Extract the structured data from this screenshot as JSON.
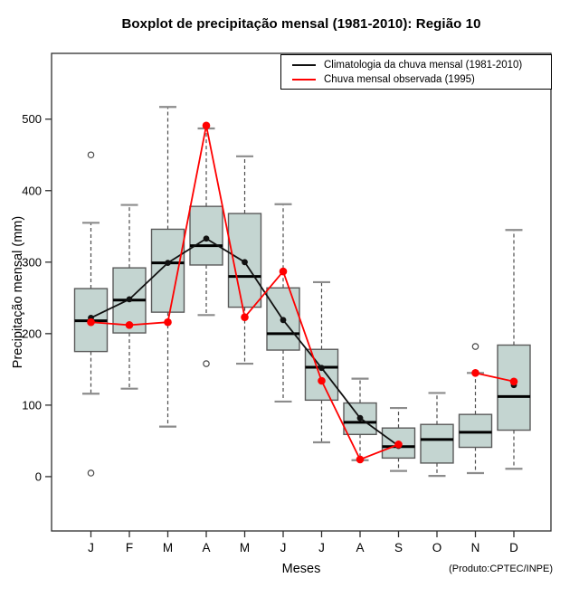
{
  "chart_data": {
    "type": "boxplot",
    "title": "Boxplot de precipitação mensal (1981-2010): Região 10",
    "xlabel": "Meses",
    "ylabel": "Precipitação mensal (mm)",
    "footnote": "(Produto:CPTEC/INPE)",
    "categories": [
      "J",
      "F",
      "M",
      "A",
      "M",
      "J",
      "J",
      "A",
      "S",
      "O",
      "N",
      "D"
    ],
    "y_ticks": [
      0,
      100,
      200,
      300,
      400,
      500
    ],
    "ylim": [
      -76,
      592
    ],
    "grid": false,
    "legend_position": "top-right",
    "boxes": [
      {
        "month": "J",
        "low": 116,
        "q1": 175,
        "median": 218,
        "q3": 263,
        "high": 355,
        "outliers": [
          450,
          5
        ]
      },
      {
        "month": "F",
        "low": 123,
        "q1": 201,
        "median": 247,
        "q3": 292,
        "high": 380,
        "outliers": []
      },
      {
        "month": "M",
        "low": 70,
        "q1": 230,
        "median": 299,
        "q3": 346,
        "high": 517,
        "outliers": []
      },
      {
        "month": "A",
        "low": 226,
        "q1": 296,
        "median": 323,
        "q3": 378,
        "high": 487,
        "outliers": [
          158
        ]
      },
      {
        "month": "M",
        "low": 158,
        "q1": 237,
        "median": 280,
        "q3": 368,
        "high": 448,
        "outliers": []
      },
      {
        "month": "J",
        "low": 105,
        "q1": 177,
        "median": 200,
        "q3": 264,
        "high": 381,
        "outliers": []
      },
      {
        "month": "J",
        "low": 48,
        "q1": 107,
        "median": 153,
        "q3": 178,
        "high": 272,
        "outliers": []
      },
      {
        "month": "A",
        "low": 23,
        "q1": 59,
        "median": 76,
        "q3": 103,
        "high": 137,
        "outliers": []
      },
      {
        "month": "S",
        "low": 8,
        "q1": 26,
        "median": 42,
        "q3": 68,
        "high": 96,
        "outliers": []
      },
      {
        "month": "O",
        "low": 1,
        "q1": 19,
        "median": 52,
        "q3": 73,
        "high": 117,
        "outliers": []
      },
      {
        "month": "N",
        "low": 5,
        "q1": 41,
        "median": 62,
        "q3": 87,
        "high": 145,
        "outliers": [
          182
        ]
      },
      {
        "month": "D",
        "low": 11,
        "q1": 65,
        "median": 112,
        "q3": 184,
        "high": 345,
        "outliers": []
      }
    ],
    "series": [
      {
        "name": "Climatologia da chuva mensal (1981-2010)",
        "color": "#111111",
        "values": [
          222,
          248,
          299,
          333,
          300,
          219,
          152,
          82,
          43,
          null,
          null,
          128
        ]
      },
      {
        "name": "Chuva mensal observada (1995)",
        "color": "#ff0000",
        "values": [
          216,
          212,
          216,
          491,
          223,
          287,
          134,
          24,
          45,
          null,
          145,
          133
        ]
      }
    ],
    "colors": {
      "box_fill": "#c4d5d1",
      "box_border": "#5a5a5a",
      "median": "#000000",
      "whisker": "#4d4d4d",
      "cap": "#8c8c8c",
      "outlier": "#4a4a4a",
      "axis": "#2e2e2e"
    }
  }
}
